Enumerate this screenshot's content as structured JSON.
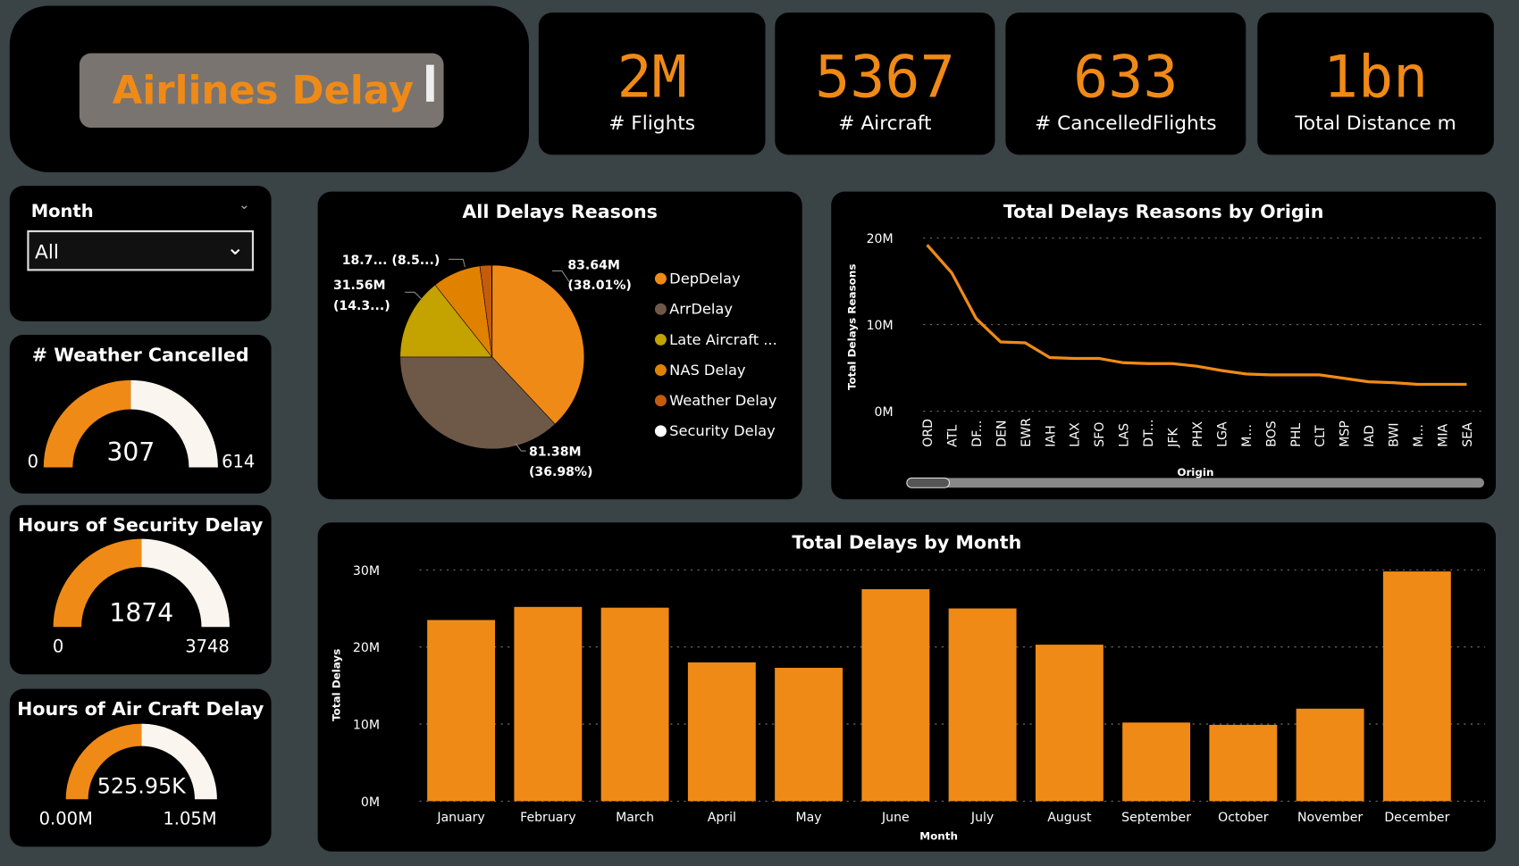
{
  "header": {
    "title": "Airlines Delay"
  },
  "kpis": [
    {
      "value": "2M",
      "label": "# Flights"
    },
    {
      "value": "5367",
      "label": "# Aircraft"
    },
    {
      "value": "633",
      "label": "# CancelledFlights"
    },
    {
      "value": "1bn",
      "label": "Total Distance m"
    }
  ],
  "slicer": {
    "label": "Month",
    "selected": "All"
  },
  "gauges": [
    {
      "title": "# Weather Cancelled",
      "value": 307,
      "value_label": "307",
      "min_label": "0",
      "max_label": "614",
      "max": 614
    },
    {
      "title": "Hours of Security Delay",
      "value": 1874,
      "value_label": "1874",
      "min_label": "0",
      "max_label": "3748",
      "max": 3748
    },
    {
      "title": "Hours of Air Craft Delay",
      "value": 525.95,
      "value_label": "525.95K",
      "min_label": "0.00M",
      "max_label": "1.05M",
      "max": 1051.9
    }
  ],
  "colors": {
    "accent": "#f08a16",
    "background": "#3a4346",
    "panel": "#000000",
    "gauge_remaining": "#fbf5ef"
  },
  "chart_data": [
    {
      "type": "pie",
      "title": "All Delays Reasons",
      "slices": [
        {
          "name": "DepDelay",
          "value": 83.64,
          "label": "83.64M",
          "pct_label": "(38.01%)",
          "color": "#f08a16"
        },
        {
          "name": "ArrDelay",
          "value": 81.38,
          "label": "81.38M",
          "pct_label": "(36.98%)",
          "color": "#6e5848"
        },
        {
          "name": "Late Aircraft ...",
          "value": 31.56,
          "label": "31.56M",
          "pct_label": "(14.3...)",
          "color": "#c4a200"
        },
        {
          "name": "NAS Delay",
          "value": 18.7,
          "label": "18.7... (8.5...)",
          "pct_label": "",
          "color": "#e08200"
        },
        {
          "name": "Weather Delay",
          "value": 4.5,
          "label": "",
          "pct_label": "",
          "color": "#c45c0c"
        },
        {
          "name": "Security Delay",
          "value": 0.2,
          "label": "",
          "pct_label": "",
          "color": "#ffffff"
        }
      ],
      "legend": "right"
    },
    {
      "type": "line",
      "title": "Total Delays Reasons by Origin",
      "xlabel": "Origin",
      "ylabel": "Total Delays Reasons",
      "categories": [
        "ORD",
        "ATL",
        "DF...",
        "DEN",
        "EWR",
        "IAH",
        "LAX",
        "SFO",
        "LAS",
        "DT...",
        "JFK",
        "PHX",
        "LGA",
        "M...",
        "BOS",
        "PHL",
        "CLT",
        "MSP",
        "IAD",
        "BWI",
        "M...",
        "MIA",
        "SEA"
      ],
      "values": [
        19.2,
        16,
        10.7,
        8,
        7.9,
        6.2,
        6.1,
        6.1,
        5.6,
        5.5,
        5.5,
        5.2,
        4.7,
        4.3,
        4.2,
        4.2,
        4.2,
        3.8,
        3.4,
        3.3,
        3.1,
        3.1,
        3.1
      ],
      "unit": "M",
      "ylim": [
        0,
        20
      ],
      "yticks": [
        "0M",
        "10M",
        "20M"
      ],
      "grid": true,
      "color": "#f08a16"
    },
    {
      "type": "bar",
      "title": "Total Delays by Month",
      "xlabel": "Month",
      "ylabel": "Total Delays",
      "categories": [
        "January",
        "February",
        "March",
        "April",
        "May",
        "June",
        "July",
        "August",
        "September",
        "October",
        "November",
        "December"
      ],
      "values": [
        23.5,
        25.2,
        25.1,
        18,
        17.3,
        27.5,
        25,
        20.3,
        10.2,
        9.9,
        12,
        29.8
      ],
      "unit": "M",
      "ylim": [
        0,
        30
      ],
      "yticks": [
        "0M",
        "10M",
        "20M",
        "30M"
      ],
      "grid": true,
      "color": "#f08a16"
    }
  ]
}
